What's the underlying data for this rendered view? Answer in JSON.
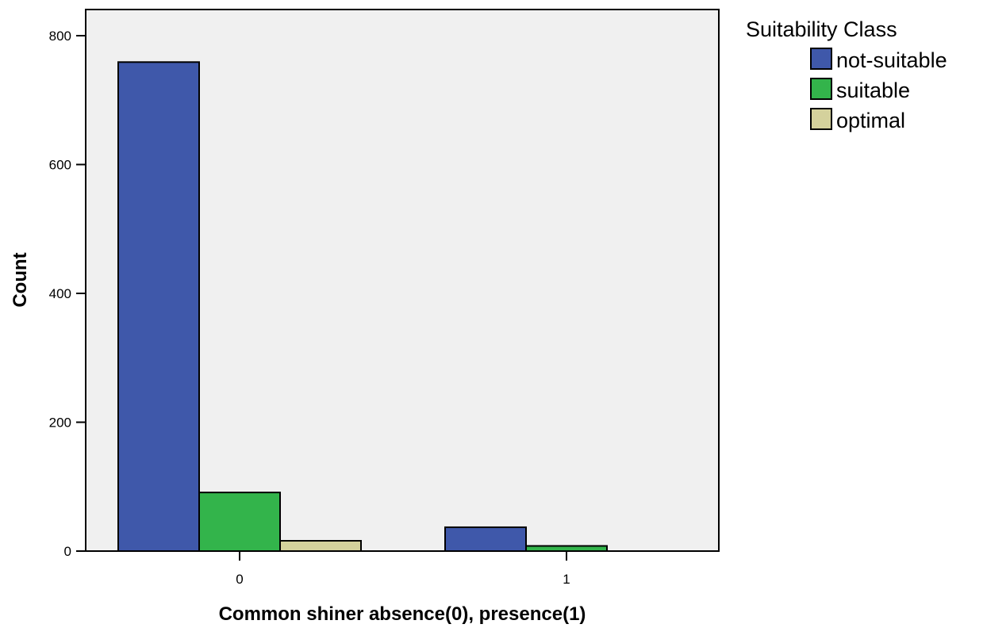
{
  "chart_data": {
    "type": "bar",
    "xlabel": "Common shiner absence(0), presence(1)",
    "ylabel": "Count",
    "categories": [
      "0",
      "1"
    ],
    "series": [
      {
        "name": "not-suitable",
        "color": "#3f58aa",
        "values": [
          759,
          37
        ]
      },
      {
        "name": "suitable",
        "color": "#33b44b",
        "values": [
          91,
          8
        ]
      },
      {
        "name": "optimal",
        "color": "#d4d19c",
        "values": [
          16,
          0
        ]
      }
    ],
    "ylim": [
      0,
      850
    ],
    "yticks": [
      0,
      200,
      400,
      600,
      800
    ],
    "grid": false,
    "legend": {
      "title": "Suitability Class",
      "position": "right"
    },
    "plot_background": "#f0f0f0"
  }
}
